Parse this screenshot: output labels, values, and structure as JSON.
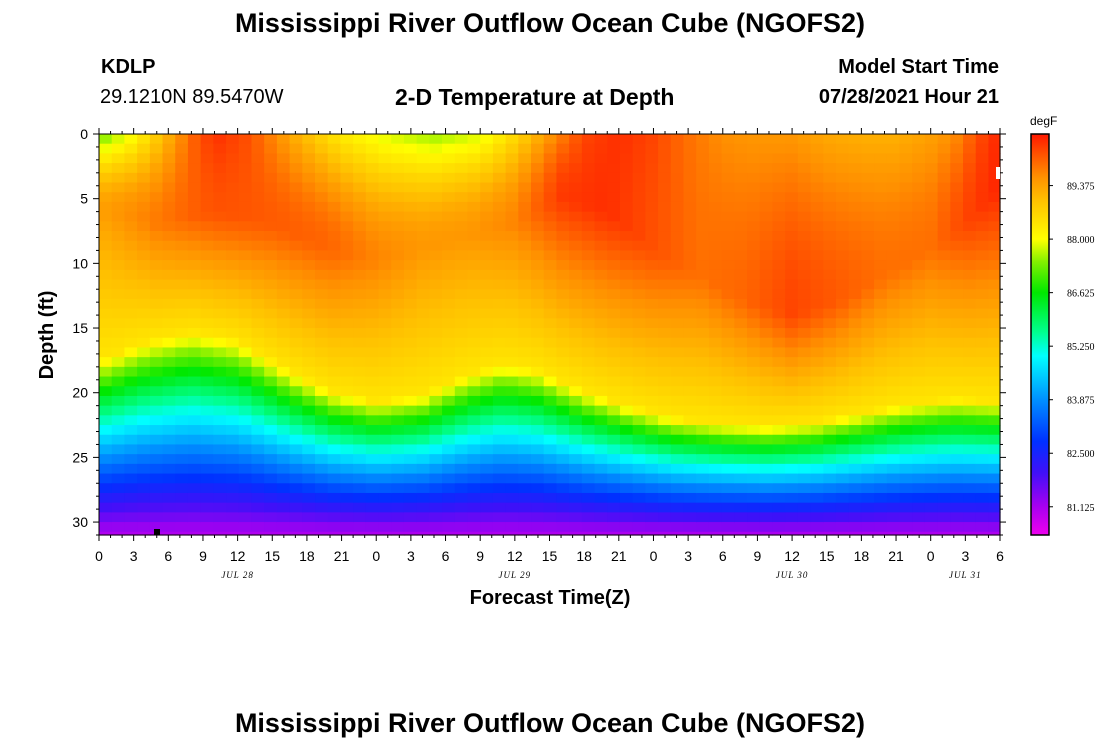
{
  "header": {
    "main_title": "Mississippi River Outflow Ocean Cube (NGOFS2)",
    "station_id": "KDLP",
    "station_coords": "29.1210N  89.5470W",
    "subtitle": "2-D Temperature at Depth",
    "model_start_label": "Model Start Time",
    "model_start_value": "07/28/2021 Hour 21"
  },
  "footer": {
    "title": "Mississippi River Outflow Ocean Cube (NGOFS2)"
  },
  "chart_data": {
    "type": "heatmap",
    "title": "2-D Temperature at Depth",
    "xlabel": "Forecast Time(Z)",
    "ylabel": "Depth (ft)",
    "x_range_hours": [
      0,
      78
    ],
    "y_range_ft": [
      0,
      31
    ],
    "y_inverted": true,
    "x_tick_hours": [
      0,
      3,
      6,
      9,
      12,
      15,
      18,
      21,
      24,
      27,
      30,
      33,
      36,
      39,
      42,
      45,
      48,
      51,
      54,
      57,
      60,
      63,
      66,
      69,
      72,
      75,
      78
    ],
    "x_tick_labels": [
      "0",
      "3",
      "6",
      "9",
      "12",
      "15",
      "18",
      "21",
      "0",
      "3",
      "6",
      "9",
      "12",
      "15",
      "18",
      "21",
      "0",
      "3",
      "6",
      "9",
      "12",
      "15",
      "18",
      "21",
      "0",
      "3",
      "6"
    ],
    "y_ticks": [
      0,
      5,
      10,
      15,
      20,
      25,
      30
    ],
    "y_tick_labels": [
      "0",
      "5",
      "10",
      "15",
      "20",
      "25",
      "30"
    ],
    "day_labels": [
      {
        "text": "JUL 28",
        "hour": 12
      },
      {
        "text": "JUL 29",
        "hour": 36
      },
      {
        "text": "JUL 30",
        "hour": 60
      },
      {
        "text": "JUL 31",
        "hour": 75
      }
    ],
    "colorbar": {
      "unit": "degF",
      "min": 80.4,
      "max": 90.7,
      "tick_values": [
        89.375,
        88.0,
        86.625,
        85.25,
        83.875,
        82.5,
        81.125
      ],
      "tick_labels": [
        "89.375",
        "88.000",
        "86.625",
        "85.250",
        "83.875",
        "82.500",
        "81.125"
      ],
      "stops": [
        {
          "v": 80.4,
          "c": "#ee00ee"
        },
        {
          "v": 81.125,
          "c": "#a800f0"
        },
        {
          "v": 82.0,
          "c": "#4010f8"
        },
        {
          "v": 82.8,
          "c": "#0030ff"
        },
        {
          "v": 83.875,
          "c": "#0090ff"
        },
        {
          "v": 85.0,
          "c": "#00ffff"
        },
        {
          "v": 85.6,
          "c": "#00ff90"
        },
        {
          "v": 86.625,
          "c": "#00e800"
        },
        {
          "v": 87.4,
          "c": "#80f000"
        },
        {
          "v": 88.0,
          "c": "#ffff00"
        },
        {
          "v": 89.0,
          "c": "#ffc000"
        },
        {
          "v": 89.6,
          "c": "#ff9000"
        },
        {
          "v": 90.2,
          "c": "#ff5000"
        },
        {
          "v": 90.7,
          "c": "#ff1800"
        }
      ]
    },
    "surface_temp_by_hour": [
      [
        0,
        87.2
      ],
      [
        3,
        88.0
      ],
      [
        6,
        89.2
      ],
      [
        8,
        90.0
      ],
      [
        10,
        90.5
      ],
      [
        13,
        90.2
      ],
      [
        17,
        89.2
      ],
      [
        21,
        88.3
      ],
      [
        25,
        87.8
      ],
      [
        29,
        87.5
      ],
      [
        33,
        87.8
      ],
      [
        35,
        88.3
      ],
      [
        39,
        89.5
      ],
      [
        42,
        90.3
      ],
      [
        45,
        90.5
      ],
      [
        48,
        90.3
      ],
      [
        51,
        89.9
      ],
      [
        54,
        89.6
      ],
      [
        57,
        89.5
      ],
      [
        60,
        89.5
      ],
      [
        63,
        89.3
      ],
      [
        66,
        89.2
      ],
      [
        69,
        89.2
      ],
      [
        72,
        89.4
      ],
      [
        74,
        89.6
      ],
      [
        76,
        90.2
      ],
      [
        78,
        90.6
      ]
    ],
    "subsurface_warm_core_by_hour": [
      [
        0,
        89.4,
        6
      ],
      [
        5,
        89.8,
        7
      ],
      [
        10,
        90.2,
        6
      ],
      [
        15,
        90.1,
        7
      ],
      [
        20,
        90.0,
        9
      ],
      [
        24,
        89.7,
        10
      ],
      [
        28,
        89.5,
        9
      ],
      [
        32,
        89.5,
        8
      ],
      [
        36,
        89.7,
        7
      ],
      [
        40,
        90.4,
        5
      ],
      [
        44,
        90.5,
        6
      ],
      [
        48,
        90.2,
        9
      ],
      [
        52,
        89.9,
        11
      ],
      [
        56,
        90.0,
        13
      ],
      [
        60,
        90.3,
        14
      ],
      [
        64,
        90.1,
        13
      ],
      [
        68,
        89.9,
        11
      ],
      [
        72,
        89.9,
        9
      ],
      [
        75,
        90.3,
        7
      ],
      [
        78,
        90.6,
        4
      ]
    ],
    "thermocline_depth_ft_by_hour": [
      [
        0,
        21.0
      ],
      [
        4,
        19.6
      ],
      [
        8,
        18.8
      ],
      [
        12,
        19.5
      ],
      [
        16,
        21.6
      ],
      [
        20,
        23.4
      ],
      [
        24,
        24.2
      ],
      [
        28,
        23.7
      ],
      [
        32,
        22.1
      ],
      [
        35,
        21.3
      ],
      [
        38,
        21.8
      ],
      [
        42,
        23.4
      ],
      [
        46,
        24.6
      ],
      [
        50,
        25.5
      ],
      [
        54,
        25.9
      ],
      [
        58,
        26.1
      ],
      [
        62,
        25.8
      ],
      [
        66,
        25.1
      ],
      [
        70,
        24.4
      ],
      [
        74,
        24.0
      ],
      [
        78,
        24.2
      ]
    ],
    "bottom_temp_degF": 81.0
  }
}
